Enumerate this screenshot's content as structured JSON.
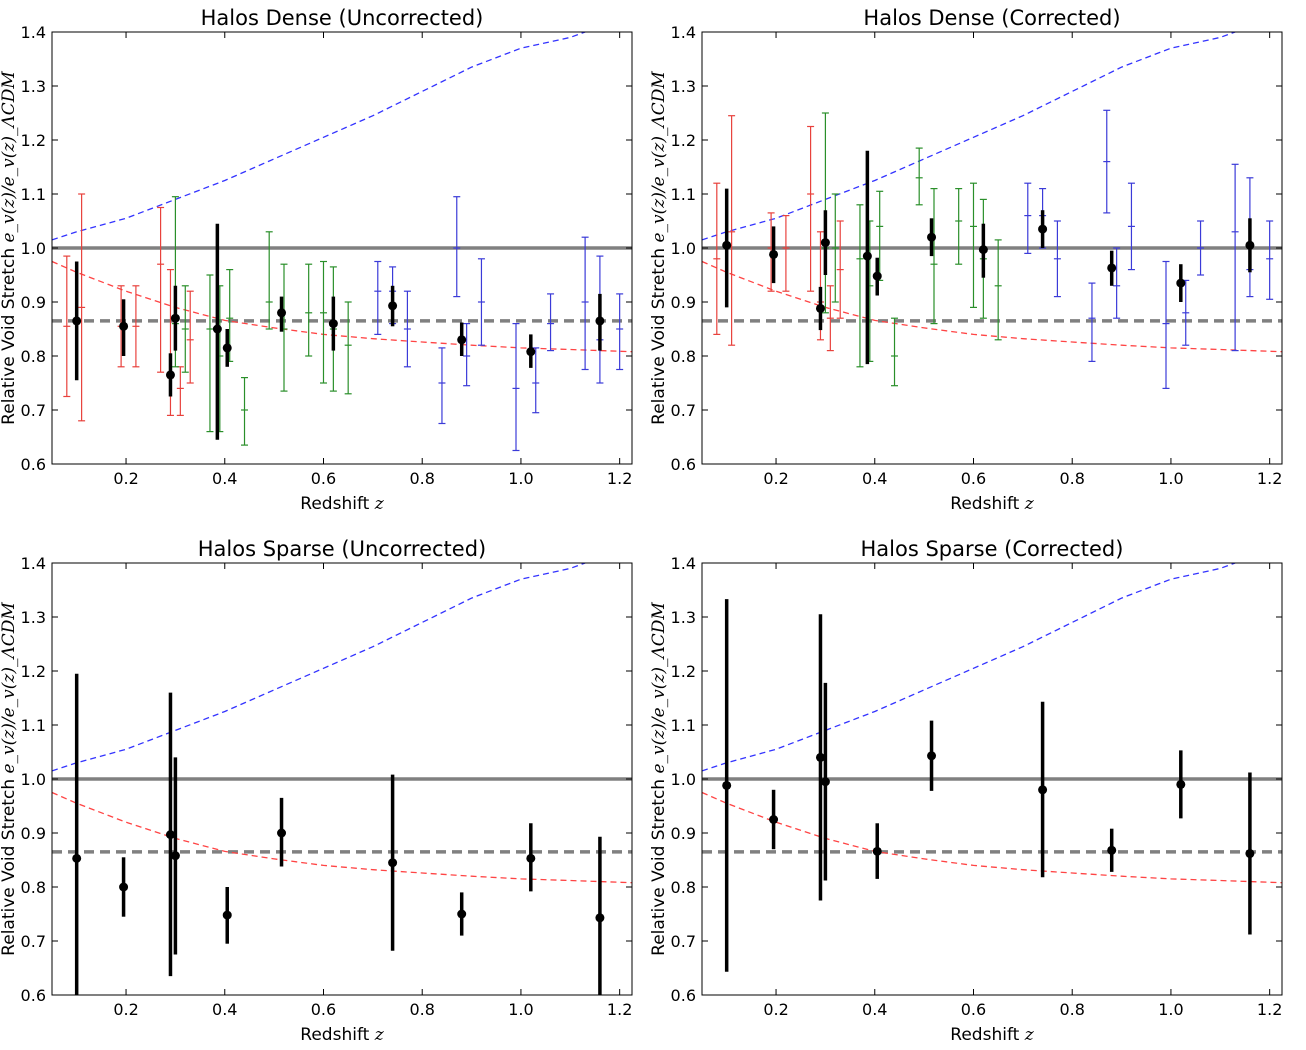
{
  "figure": {
    "ylabel_text": "Relative Void Stretch",
    "ylabel_math": "e_v(z)/e_v(z)_ΛCDM",
    "xlabel_text": "Redshift",
    "xlabel_math": "z"
  },
  "colors": {
    "ref_line": "#808080",
    "blue_curve": "#3333ff",
    "red_curve": "#ff4444",
    "black_points": "#000000",
    "red_bars": "#e8413c",
    "green_bars": "#2a8f2a",
    "blue_bars": "#3b3bd8"
  },
  "chart_data": [
    {
      "type": "scatter",
      "title": "Halos Dense (Uncorrected)",
      "xlim": [
        0.05,
        1.225
      ],
      "ylim": [
        0.6,
        1.4
      ],
      "xticks": [
        0.2,
        0.4,
        0.6,
        0.8,
        1.0,
        1.2
      ],
      "yticks": [
        0.6,
        0.7,
        0.8,
        0.9,
        1.0,
        1.1,
        1.2,
        1.3,
        1.4
      ],
      "reference_lines": [
        {
          "y": 1.0,
          "style": "solid"
        },
        {
          "y": 0.865,
          "style": "dashed"
        }
      ],
      "curves": [
        {
          "color": "blue",
          "x": [
            0.05,
            0.1,
            0.2,
            0.3,
            0.4,
            0.5,
            0.6,
            0.7,
            0.8,
            0.9,
            1.0,
            1.1,
            1.13
          ],
          "y": [
            1.015,
            1.03,
            1.055,
            1.09,
            1.125,
            1.165,
            1.205,
            1.245,
            1.29,
            1.335,
            1.37,
            1.39,
            1.4
          ]
        },
        {
          "color": "red",
          "x": [
            0.05,
            0.1,
            0.2,
            0.3,
            0.4,
            0.5,
            0.6,
            0.7,
            0.8,
            0.9,
            1.0,
            1.1,
            1.225
          ],
          "y": [
            0.975,
            0.955,
            0.92,
            0.89,
            0.866,
            0.852,
            0.84,
            0.832,
            0.826,
            0.82,
            0.815,
            0.812,
            0.808
          ]
        }
      ],
      "colored_bars": [
        {
          "color": "red",
          "x": [
            0.08,
            0.11,
            0.19,
            0.22,
            0.27,
            0.29,
            0.31,
            0.33
          ],
          "y": [
            0.855,
            0.89,
            0.855,
            0.855,
            0.97,
            0.76,
            0.74,
            0.83
          ],
          "lo": [
            0.725,
            0.68,
            0.78,
            0.78,
            0.77,
            0.69,
            0.69,
            0.75
          ],
          "hi": [
            0.985,
            1.1,
            0.93,
            0.93,
            1.075,
            0.96,
            0.78,
            0.92
          ]
        },
        {
          "color": "green",
          "x": [
            0.3,
            0.32,
            0.37,
            0.39,
            0.41,
            0.44,
            0.49,
            0.52,
            0.57,
            0.6,
            0.62,
            0.65
          ],
          "y": [
            0.86,
            0.85,
            0.85,
            0.8,
            0.87,
            0.7,
            0.9,
            0.85,
            0.88,
            0.88,
            0.85,
            0.82
          ],
          "lo": [
            0.78,
            0.77,
            0.66,
            0.66,
            0.79,
            0.635,
            0.85,
            0.735,
            0.8,
            0.75,
            0.735,
            0.73
          ],
          "hi": [
            1.095,
            0.93,
            0.95,
            0.93,
            0.96,
            0.76,
            1.03,
            0.97,
            0.97,
            0.975,
            0.965,
            0.9
          ]
        },
        {
          "color": "blue",
          "x": [
            0.71,
            0.74,
            0.77,
            0.84,
            0.87,
            0.89,
            0.92,
            0.99,
            1.03,
            1.06,
            1.13,
            1.16,
            1.2
          ],
          "y": [
            0.92,
            0.92,
            0.85,
            0.75,
            1.0,
            0.8,
            0.9,
            0.74,
            0.75,
            0.86,
            0.9,
            0.83,
            0.85
          ],
          "lo": [
            0.84,
            0.86,
            0.78,
            0.675,
            0.91,
            0.745,
            0.82,
            0.625,
            0.695,
            0.81,
            0.775,
            0.75,
            0.775
          ],
          "hi": [
            0.975,
            0.965,
            0.92,
            0.815,
            1.095,
            0.86,
            0.98,
            0.86,
            0.815,
            0.915,
            1.02,
            0.985,
            0.915
          ]
        }
      ],
      "points": [
        {
          "x": 0.1,
          "y": 0.865,
          "lo": 0.755,
          "hi": 0.975
        },
        {
          "x": 0.195,
          "y": 0.855,
          "lo": 0.8,
          "hi": 0.905
        },
        {
          "x": 0.29,
          "y": 0.765,
          "lo": 0.725,
          "hi": 0.805
        },
        {
          "x": 0.3,
          "y": 0.87,
          "lo": 0.81,
          "hi": 0.93
        },
        {
          "x": 0.385,
          "y": 0.85,
          "lo": 0.645,
          "hi": 1.045
        },
        {
          "x": 0.405,
          "y": 0.815,
          "lo": 0.78,
          "hi": 0.85
        },
        {
          "x": 0.515,
          "y": 0.88,
          "lo": 0.845,
          "hi": 0.91
        },
        {
          "x": 0.62,
          "y": 0.86,
          "lo": 0.81,
          "hi": 0.91
        },
        {
          "x": 0.74,
          "y": 0.893,
          "lo": 0.855,
          "hi": 0.93
        },
        {
          "x": 0.88,
          "y": 0.83,
          "lo": 0.8,
          "hi": 0.862
        },
        {
          "x": 1.02,
          "y": 0.808,
          "lo": 0.778,
          "hi": 0.84
        },
        {
          "x": 1.16,
          "y": 0.865,
          "lo": 0.81,
          "hi": 0.915
        }
      ]
    },
    {
      "type": "scatter",
      "title": "Halos Dense (Corrected)",
      "xlim": [
        0.05,
        1.225
      ],
      "ylim": [
        0.6,
        1.4
      ],
      "xticks": [
        0.2,
        0.4,
        0.6,
        0.8,
        1.0,
        1.2
      ],
      "yticks": [
        0.6,
        0.7,
        0.8,
        0.9,
        1.0,
        1.1,
        1.2,
        1.3,
        1.4
      ],
      "reference_lines": [
        {
          "y": 1.0,
          "style": "solid"
        },
        {
          "y": 0.865,
          "style": "dashed"
        }
      ],
      "curves": [
        {
          "color": "blue",
          "x": [
            0.05,
            0.1,
            0.2,
            0.3,
            0.4,
            0.5,
            0.6,
            0.7,
            0.8,
            0.9,
            1.0,
            1.1,
            1.13
          ],
          "y": [
            1.015,
            1.03,
            1.055,
            1.09,
            1.125,
            1.165,
            1.205,
            1.245,
            1.29,
            1.335,
            1.37,
            1.39,
            1.4
          ]
        },
        {
          "color": "red",
          "x": [
            0.05,
            0.1,
            0.2,
            0.3,
            0.4,
            0.5,
            0.6,
            0.7,
            0.8,
            0.9,
            1.0,
            1.1,
            1.225
          ],
          "y": [
            0.975,
            0.955,
            0.92,
            0.89,
            0.866,
            0.852,
            0.84,
            0.832,
            0.826,
            0.82,
            0.815,
            0.812,
            0.808
          ]
        }
      ],
      "colored_bars": [
        {
          "color": "red",
          "x": [
            0.08,
            0.11,
            0.19,
            0.22,
            0.27,
            0.29,
            0.31,
            0.33
          ],
          "y": [
            0.98,
            1.03,
            1.0,
            1.0,
            1.1,
            0.9,
            0.87,
            0.96
          ],
          "lo": [
            0.84,
            0.82,
            0.92,
            0.92,
            0.92,
            0.83,
            0.81,
            0.87
          ],
          "hi": [
            1.12,
            1.245,
            1.065,
            1.06,
            1.225,
            1.03,
            0.93,
            1.05
          ]
        },
        {
          "color": "green",
          "x": [
            0.3,
            0.32,
            0.37,
            0.39,
            0.41,
            0.44,
            0.49,
            0.52,
            0.57,
            0.6,
            0.62,
            0.65
          ],
          "y": [
            1.0,
            1.0,
            0.98,
            0.93,
            1.04,
            0.8,
            1.13,
            0.97,
            1.05,
            1.04,
            0.98,
            0.93
          ],
          "lo": [
            0.88,
            0.9,
            0.78,
            0.79,
            0.94,
            0.745,
            1.08,
            0.86,
            0.97,
            0.89,
            0.87,
            0.83
          ],
          "hi": [
            1.25,
            1.1,
            1.08,
            1.05,
            1.105,
            0.87,
            1.185,
            1.11,
            1.11,
            1.12,
            1.09,
            1.015
          ]
        },
        {
          "color": "blue",
          "x": [
            0.71,
            0.74,
            0.77,
            0.84,
            0.87,
            0.89,
            0.92,
            0.99,
            1.03,
            1.06,
            1.13,
            1.16,
            1.2
          ],
          "y": [
            1.06,
            1.06,
            0.98,
            0.87,
            1.16,
            0.93,
            1.04,
            0.86,
            0.88,
            1.0,
            1.03,
            0.96,
            0.98
          ],
          "lo": [
            0.99,
            1.0,
            0.91,
            0.79,
            1.065,
            0.87,
            0.96,
            0.74,
            0.82,
            0.95,
            0.81,
            0.91,
            0.905
          ],
          "hi": [
            1.12,
            1.11,
            1.05,
            0.935,
            1.255,
            1.0,
            1.12,
            0.975,
            0.94,
            1.05,
            1.155,
            1.13,
            1.05
          ]
        }
      ],
      "points": [
        {
          "x": 0.1,
          "y": 1.005,
          "lo": 0.89,
          "hi": 1.11
        },
        {
          "x": 0.195,
          "y": 0.988,
          "lo": 0.935,
          "hi": 1.04
        },
        {
          "x": 0.29,
          "y": 0.888,
          "lo": 0.848,
          "hi": 0.928
        },
        {
          "x": 0.3,
          "y": 1.01,
          "lo": 0.95,
          "hi": 1.07
        },
        {
          "x": 0.385,
          "y": 0.985,
          "lo": 0.785,
          "hi": 1.18
        },
        {
          "x": 0.405,
          "y": 0.948,
          "lo": 0.912,
          "hi": 0.982
        },
        {
          "x": 0.515,
          "y": 1.02,
          "lo": 0.985,
          "hi": 1.055
        },
        {
          "x": 0.62,
          "y": 0.997,
          "lo": 0.945,
          "hi": 1.045
        },
        {
          "x": 0.74,
          "y": 1.035,
          "lo": 1.0,
          "hi": 1.07
        },
        {
          "x": 0.88,
          "y": 0.963,
          "lo": 0.93,
          "hi": 0.995
        },
        {
          "x": 1.02,
          "y": 0.935,
          "lo": 0.9,
          "hi": 0.97
        },
        {
          "x": 1.16,
          "y": 1.005,
          "lo": 0.955,
          "hi": 1.055
        }
      ]
    },
    {
      "type": "scatter",
      "title": "Halos Sparse (Uncorrected)",
      "xlim": [
        0.05,
        1.225
      ],
      "ylim": [
        0.6,
        1.4
      ],
      "xticks": [
        0.2,
        0.4,
        0.6,
        0.8,
        1.0,
        1.2
      ],
      "yticks": [
        0.6,
        0.7,
        0.8,
        0.9,
        1.0,
        1.1,
        1.2,
        1.3,
        1.4
      ],
      "reference_lines": [
        {
          "y": 1.0,
          "style": "solid"
        },
        {
          "y": 0.865,
          "style": "dashed"
        }
      ],
      "curves": [
        {
          "color": "blue",
          "x": [
            0.05,
            0.1,
            0.2,
            0.3,
            0.4,
            0.5,
            0.6,
            0.7,
            0.8,
            0.9,
            1.0,
            1.1,
            1.13
          ],
          "y": [
            1.015,
            1.03,
            1.055,
            1.09,
            1.125,
            1.165,
            1.205,
            1.245,
            1.29,
            1.335,
            1.37,
            1.39,
            1.4
          ]
        },
        {
          "color": "red",
          "x": [
            0.05,
            0.1,
            0.2,
            0.3,
            0.4,
            0.5,
            0.6,
            0.7,
            0.8,
            0.9,
            1.0,
            1.1,
            1.225
          ],
          "y": [
            0.975,
            0.955,
            0.92,
            0.89,
            0.866,
            0.852,
            0.84,
            0.832,
            0.826,
            0.82,
            0.815,
            0.812,
            0.808
          ]
        }
      ],
      "colored_bars": [],
      "points": [
        {
          "x": 0.1,
          "y": 0.853,
          "lo": 0.6,
          "hi": 1.195
        },
        {
          "x": 0.195,
          "y": 0.8,
          "lo": 0.745,
          "hi": 0.855
        },
        {
          "x": 0.29,
          "y": 0.897,
          "lo": 0.635,
          "hi": 1.16
        },
        {
          "x": 0.3,
          "y": 0.858,
          "lo": 0.675,
          "hi": 1.04
        },
        {
          "x": 0.405,
          "y": 0.748,
          "lo": 0.695,
          "hi": 0.8
        },
        {
          "x": 0.515,
          "y": 0.9,
          "lo": 0.838,
          "hi": 0.965
        },
        {
          "x": 0.74,
          "y": 0.845,
          "lo": 0.682,
          "hi": 1.008
        },
        {
          "x": 0.88,
          "y": 0.75,
          "lo": 0.71,
          "hi": 0.79
        },
        {
          "x": 1.02,
          "y": 0.853,
          "lo": 0.792,
          "hi": 0.918
        },
        {
          "x": 1.16,
          "y": 0.743,
          "lo": 0.6,
          "hi": 0.893
        }
      ]
    },
    {
      "type": "scatter",
      "title": "Halos Sparse (Corrected)",
      "xlim": [
        0.05,
        1.225
      ],
      "ylim": [
        0.6,
        1.4
      ],
      "xticks": [
        0.2,
        0.4,
        0.6,
        0.8,
        1.0,
        1.2
      ],
      "yticks": [
        0.6,
        0.7,
        0.8,
        0.9,
        1.0,
        1.1,
        1.2,
        1.3,
        1.4
      ],
      "reference_lines": [
        {
          "y": 1.0,
          "style": "solid"
        },
        {
          "y": 0.865,
          "style": "dashed"
        }
      ],
      "curves": [
        {
          "color": "blue",
          "x": [
            0.05,
            0.1,
            0.2,
            0.3,
            0.4,
            0.5,
            0.6,
            0.7,
            0.8,
            0.9,
            1.0,
            1.1,
            1.13
          ],
          "y": [
            1.015,
            1.03,
            1.055,
            1.09,
            1.125,
            1.165,
            1.205,
            1.245,
            1.29,
            1.335,
            1.37,
            1.39,
            1.4
          ]
        },
        {
          "color": "red",
          "x": [
            0.05,
            0.1,
            0.2,
            0.3,
            0.4,
            0.5,
            0.6,
            0.7,
            0.8,
            0.9,
            1.0,
            1.1,
            1.225
          ],
          "y": [
            0.975,
            0.955,
            0.92,
            0.89,
            0.866,
            0.852,
            0.84,
            0.832,
            0.826,
            0.82,
            0.815,
            0.812,
            0.808
          ]
        }
      ],
      "colored_bars": [],
      "points": [
        {
          "x": 0.1,
          "y": 0.988,
          "lo": 0.643,
          "hi": 1.333
        },
        {
          "x": 0.195,
          "y": 0.925,
          "lo": 0.87,
          "hi": 0.98
        },
        {
          "x": 0.29,
          "y": 1.04,
          "lo": 0.775,
          "hi": 1.305
        },
        {
          "x": 0.3,
          "y": 0.995,
          "lo": 0.812,
          "hi": 1.178
        },
        {
          "x": 0.405,
          "y": 0.866,
          "lo": 0.815,
          "hi": 0.918
        },
        {
          "x": 0.515,
          "y": 1.043,
          "lo": 0.978,
          "hi": 1.108
        },
        {
          "x": 0.74,
          "y": 0.98,
          "lo": 0.818,
          "hi": 1.143
        },
        {
          "x": 0.88,
          "y": 0.868,
          "lo": 0.828,
          "hi": 0.908
        },
        {
          "x": 1.02,
          "y": 0.99,
          "lo": 0.927,
          "hi": 1.053
        },
        {
          "x": 1.16,
          "y": 0.862,
          "lo": 0.712,
          "hi": 1.012
        }
      ]
    }
  ]
}
